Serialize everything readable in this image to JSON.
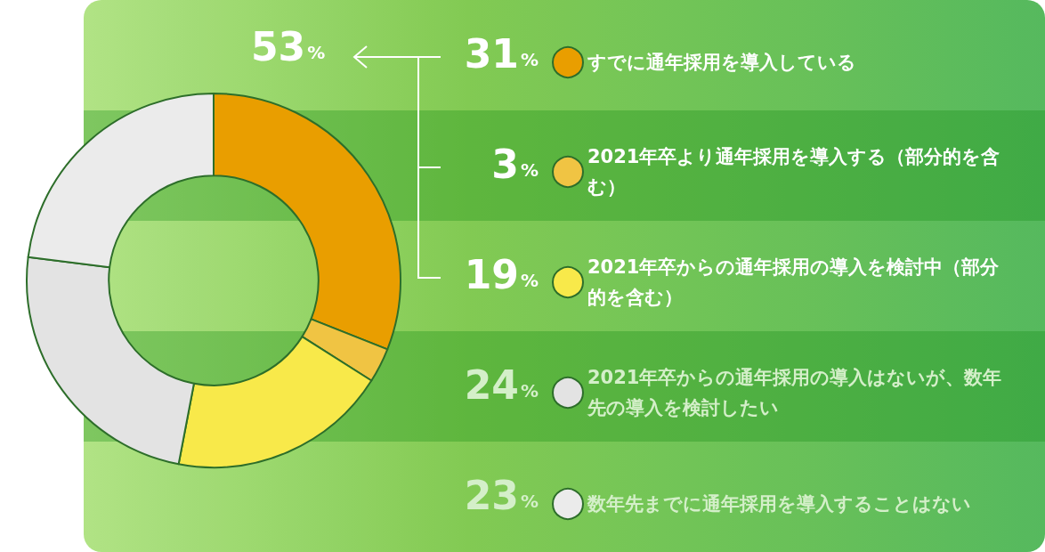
{
  "chart_data": {
    "type": "donut",
    "categories": [
      "すでに通年採用を導入している",
      "2021年卒より通年採用を導入する（部分的を含む）",
      "2021年卒からの通年採用の導入を検討中（部分的を含む）",
      "2021年卒からの通年採用の導入はないが、数年先の導入を検討したい",
      "数年先までに通年採用を導入することはない"
    ],
    "values": [
      31,
      3,
      19,
      24,
      23
    ],
    "colors": [
      "#e99e00",
      "#f0c443",
      "#f8e94a",
      "#e3e3e3",
      "#ebebeb"
    ],
    "value_labels": [
      "31%",
      "3%",
      "19%",
      "24%",
      "23%"
    ],
    "legend": "right",
    "annotations": [
      "53%"
    ]
  }
}
